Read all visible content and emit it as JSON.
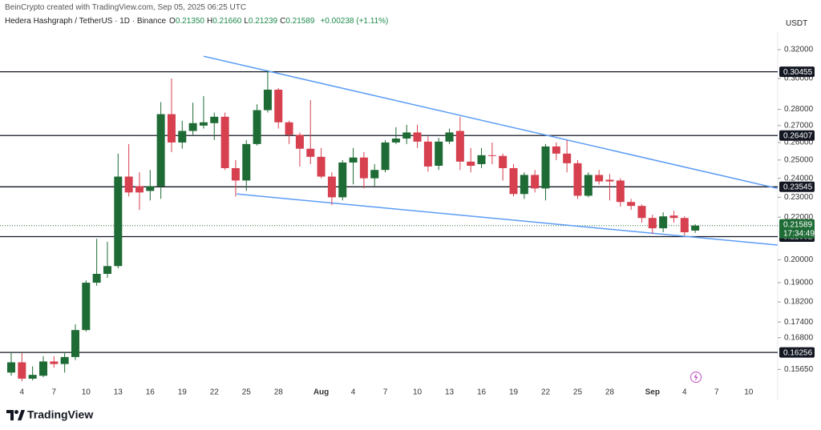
{
  "header": {
    "credit": "BeinCrypto created with TradingView.com, Sep 05, 2025 06:25 UTC",
    "symbol": "Hedera Hashgraph / TetherUS · 1D · Binance",
    "ohlc": [
      {
        "key": "O",
        "value": "0.21350"
      },
      {
        "key": "H",
        "value": "0.21660"
      },
      {
        "key": "L",
        "value": "0.21239"
      },
      {
        "key": "C",
        "value": "0.21589"
      }
    ],
    "change": "+0.00238 (+1.11%)",
    "currency": "USDT"
  },
  "chart_data": {
    "type": "candlestick",
    "categories": [
      null,
      "4",
      null,
      null,
      "7",
      null,
      null,
      "10",
      null,
      null,
      "13",
      null,
      null,
      "16",
      null,
      null,
      "19",
      null,
      null,
      "22",
      null,
      null,
      "25",
      null,
      null,
      "28",
      null,
      null,
      null,
      "Aug",
      null,
      null,
      "4",
      null,
      null,
      "7",
      null,
      null,
      "10",
      null,
      null,
      "13",
      null,
      null,
      "16",
      null,
      null,
      "19",
      null,
      null,
      "22",
      null,
      null,
      "25",
      null,
      null,
      "28",
      null,
      null,
      null,
      "Sep",
      null,
      null,
      "4",
      null,
      null,
      "7",
      null,
      null,
      "10"
    ],
    "open": [
      0.1554,
      0.159,
      0.1533,
      0.1543,
      0.1593,
      0.1584,
      0.1609,
      0.1709,
      0.19,
      0.1938,
      0.1972,
      0.2409,
      0.2358,
      0.2333,
      0.2358,
      0.277,
      0.26,
      0.2668,
      0.27,
      0.2715,
      0.2754,
      0.2455,
      0.2388,
      0.2591,
      0.2795,
      0.2926,
      0.272,
      0.2645,
      0.2564,
      0.2518,
      0.2409,
      0.23,
      0.2486,
      0.2514,
      0.24,
      0.2445,
      0.26,
      0.2623,
      0.2659,
      0.2605,
      0.2468,
      0.2605,
      0.2668,
      0.2491,
      0.2477,
      0.2527,
      0.2523,
      0.2455,
      0.2317,
      0.2418,
      0.2346,
      0.2577,
      0.2536,
      0.2482,
      0.2308,
      0.2418,
      0.2392,
      0.2388,
      0.2276,
      0.2256,
      0.2196,
      0.2146,
      0.2208,
      0.2196,
      0.2135,
      null,
      null,
      null,
      null,
      null
    ],
    "high": [
      0.1626,
      0.1623,
      0.1576,
      0.1612,
      0.1612,
      0.1626,
      0.1731,
      0.191,
      0.2096,
      0.2082,
      0.2536,
      0.2591,
      0.2432,
      0.2445,
      0.2846,
      0.3,
      0.273,
      0.2842,
      0.2884,
      0.278,
      0.278,
      0.25,
      0.2614,
      0.2832,
      0.3054,
      0.2937,
      0.273,
      0.2659,
      0.2858,
      0.2568,
      0.2432,
      0.25,
      0.2568,
      0.2545,
      0.2477,
      0.2614,
      0.2691,
      0.2705,
      0.2705,
      0.2636,
      0.2627,
      0.2682,
      0.2754,
      0.2568,
      0.2568,
      0.26,
      0.2536,
      0.2477,
      0.2432,
      0.2445,
      0.2591,
      0.26,
      0.2614,
      0.25,
      0.2432,
      0.2445,
      0.2423,
      0.24,
      0.2292,
      0.2264,
      0.2212,
      0.2224,
      0.2232,
      0.2204,
      0.2166,
      null,
      null,
      null,
      null,
      null
    ],
    "low": [
      0.1543,
      0.1524,
      0.1527,
      0.1538,
      0.1571,
      0.1554,
      0.1598,
      0.1703,
      0.1887,
      0.1921,
      0.1962,
      0.2304,
      0.2236,
      0.2284,
      0.2292,
      0.2545,
      0.2564,
      0.2645,
      0.2682,
      0.2614,
      0.2445,
      0.2304,
      0.2333,
      0.2582,
      0.278,
      0.2682,
      0.2591,
      0.2464,
      0.2477,
      0.24,
      0.226,
      0.2284,
      0.2367,
      0.2346,
      0.2358,
      0.2432,
      0.2591,
      0.2591,
      0.2568,
      0.2436,
      0.2445,
      0.2591,
      0.2445,
      0.2432,
      0.2455,
      0.2477,
      0.2388,
      0.2304,
      0.2292,
      0.2325,
      0.2284,
      0.25,
      0.2432,
      0.2292,
      0.23,
      0.2367,
      0.2284,
      0.2252,
      0.2236,
      0.2173,
      0.2119,
      0.2127,
      0.2173,
      0.2112,
      0.21239,
      null,
      null,
      null,
      null,
      null
    ],
    "close": [
      0.159,
      0.1533,
      0.1546,
      0.1593,
      0.1584,
      0.1609,
      0.1709,
      0.19,
      0.1938,
      0.1972,
      0.2409,
      0.2325,
      0.2325,
      0.2358,
      0.277,
      0.26,
      0.2668,
      0.2715,
      0.272,
      0.2754,
      0.2455,
      0.2388,
      0.2591,
      0.2795,
      0.2926,
      0.272,
      0.2645,
      0.2564,
      0.2518,
      0.2409,
      0.23,
      0.2486,
      0.2514,
      0.24,
      0.2445,
      0.26,
      0.2623,
      0.2659,
      0.2605,
      0.2464,
      0.2605,
      0.2659,
      0.2491,
      0.2468,
      0.2527,
      0.2523,
      0.2455,
      0.2317,
      0.2418,
      0.2346,
      0.2577,
      0.2536,
      0.2482,
      0.2308,
      0.2418,
      0.2383,
      0.2383,
      0.2276,
      0.2256,
      0.2196,
      0.2146,
      0.2204,
      0.2196,
      0.2127,
      0.21589,
      null,
      null,
      null,
      null,
      null
    ],
    "up_color": "#1e6b35",
    "down_color": "#d6404f",
    "ylim": [
      0.1519,
      0.3299
    ],
    "log_scale": true,
    "yticks": [
      {
        "value": 0.32,
        "label": "0.32000"
      },
      {
        "value": 0.3,
        "label": "0.30000"
      },
      {
        "value": 0.28,
        "label": "0.28000"
      },
      {
        "value": 0.27,
        "label": "0.27000"
      },
      {
        "value": 0.26,
        "label": "0.26000"
      },
      {
        "value": 0.25,
        "label": "0.25000"
      },
      {
        "value": 0.24,
        "label": "0.24000"
      },
      {
        "value": 0.23,
        "label": "0.23000"
      },
      {
        "value": 0.22,
        "label": "0.22000"
      },
      {
        "value": 0.2,
        "label": "0.20000"
      },
      {
        "value": 0.19,
        "label": "0.19000"
      },
      {
        "value": 0.182,
        "label": "0.18200"
      },
      {
        "value": 0.174,
        "label": "0.17400"
      },
      {
        "value": 0.168,
        "label": "0.16800"
      },
      {
        "value": 0.1565,
        "label": "0.15650"
      }
    ],
    "levels": [
      0.30455,
      0.26407,
      0.23545,
      0.21062,
      0.16256
    ],
    "last_price": 0.21589,
    "last_price_color": "#1e6b35",
    "countdown": "17:34:49",
    "trendlines": [
      {
        "color": "#5b9cf6",
        "points": [
          [
            18,
            0.3153
          ],
          [
            71.7,
            0.2346
          ]
        ]
      },
      {
        "color": "#5b9cf6",
        "points": [
          [
            21.1,
            0.2317
          ],
          [
            71.7,
            0.2067
          ]
        ]
      }
    ]
  },
  "footer": {
    "logo": "TradingView"
  }
}
